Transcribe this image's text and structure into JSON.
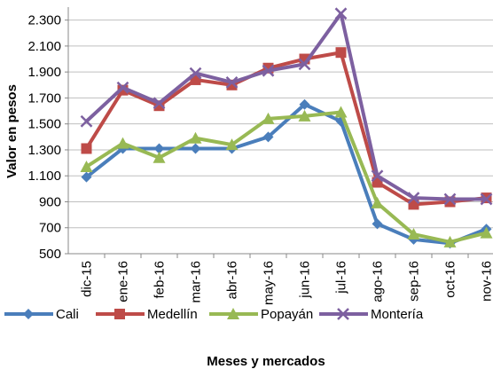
{
  "chart_data": {
    "type": "line",
    "y_label": "Valor en pesos",
    "x_label": "Meses y mercados",
    "categories": [
      "dic-15",
      "ene-16",
      "feb-16",
      "mar-16",
      "abr-16",
      "may-16",
      "jun-16",
      "jul-16",
      "ago-16",
      "sep-16",
      "oct-16",
      "nov-16"
    ],
    "series": [
      {
        "name": "Cali",
        "color": "#4a7ebb",
        "marker": "diamond",
        "values": [
          1090,
          1310,
          1310,
          1310,
          1310,
          1400,
          1650,
          1520,
          730,
          610,
          580,
          690
        ]
      },
      {
        "name": "Medellín",
        "color": "#be4b48",
        "marker": "square",
        "values": [
          1310,
          1760,
          1640,
          1840,
          1800,
          1930,
          2000,
          2050,
          1050,
          880,
          900,
          930
        ]
      },
      {
        "name": "Popayán",
        "color": "#98b954",
        "marker": "triangle",
        "values": [
          1170,
          1350,
          1240,
          1390,
          1340,
          1540,
          1560,
          1590,
          890,
          650,
          590,
          660
        ]
      },
      {
        "name": "Montería",
        "color": "#7d60a0",
        "marker": "x",
        "values": [
          1520,
          1780,
          1660,
          1890,
          1820,
          1910,
          1960,
          2350,
          1100,
          930,
          920,
          920
        ]
      }
    ],
    "ylim": [
      500,
      2400
    ],
    "yticks": [
      500,
      700,
      900,
      {
        "value": 1100,
        "label": "1.100"
      },
      {
        "value": 1300,
        "label": "1.300"
      },
      {
        "value": 1500,
        "label": "1.500"
      },
      {
        "value": 1700,
        "label": "1.700"
      },
      {
        "value": 1900,
        "label": "1.900"
      },
      {
        "value": 2100,
        "label": "2.100"
      },
      {
        "value": 2300,
        "label": "2.300"
      }
    ],
    "grid": true
  }
}
